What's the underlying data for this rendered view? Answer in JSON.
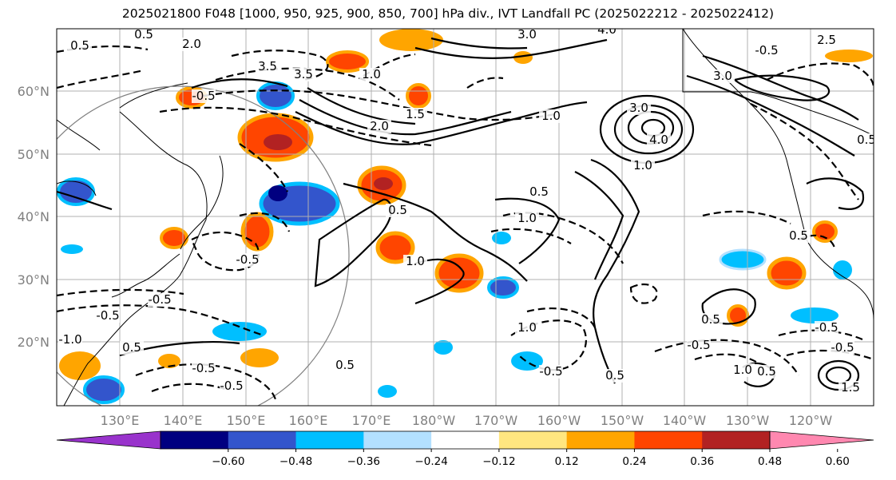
{
  "title": "2025021800 F048 [1000, 950, 925, 900, 850, 700] hPa div., IVT Landfall PC (2025022212 - 2025022412)",
  "map": {
    "lat_ticks": [
      "60°N",
      "50°N",
      "40°N",
      "30°N",
      "20°N"
    ],
    "lon_ticks": [
      "130°E",
      "140°E",
      "150°E",
      "160°E",
      "170°E",
      "180°W",
      "170°W",
      "160°W",
      "150°W",
      "140°W",
      "130°W",
      "120°W"
    ],
    "gridlines": true,
    "contour_labels": [
      "0.5",
      "1.0",
      "1.5",
      "2.0",
      "2.5",
      "3.0",
      "3.5",
      "4.0",
      "-0.5",
      "-1.0"
    ],
    "coastline_color": "#000000"
  },
  "colorbar": {
    "colors": [
      "#9933cc",
      "#000080",
      "#3355cc",
      "#00bfff",
      "#b3e0ff",
      "#ffffff",
      "#ffe680",
      "#ffa500",
      "#ff4500",
      "#b22222",
      "#ff88b0"
    ],
    "tick_labels": [
      "−0.60",
      "−0.48",
      "−0.36",
      "−0.24",
      "−0.12",
      "0.12",
      "0.24",
      "0.36",
      "0.48",
      "0.60"
    ],
    "extend": "both"
  }
}
